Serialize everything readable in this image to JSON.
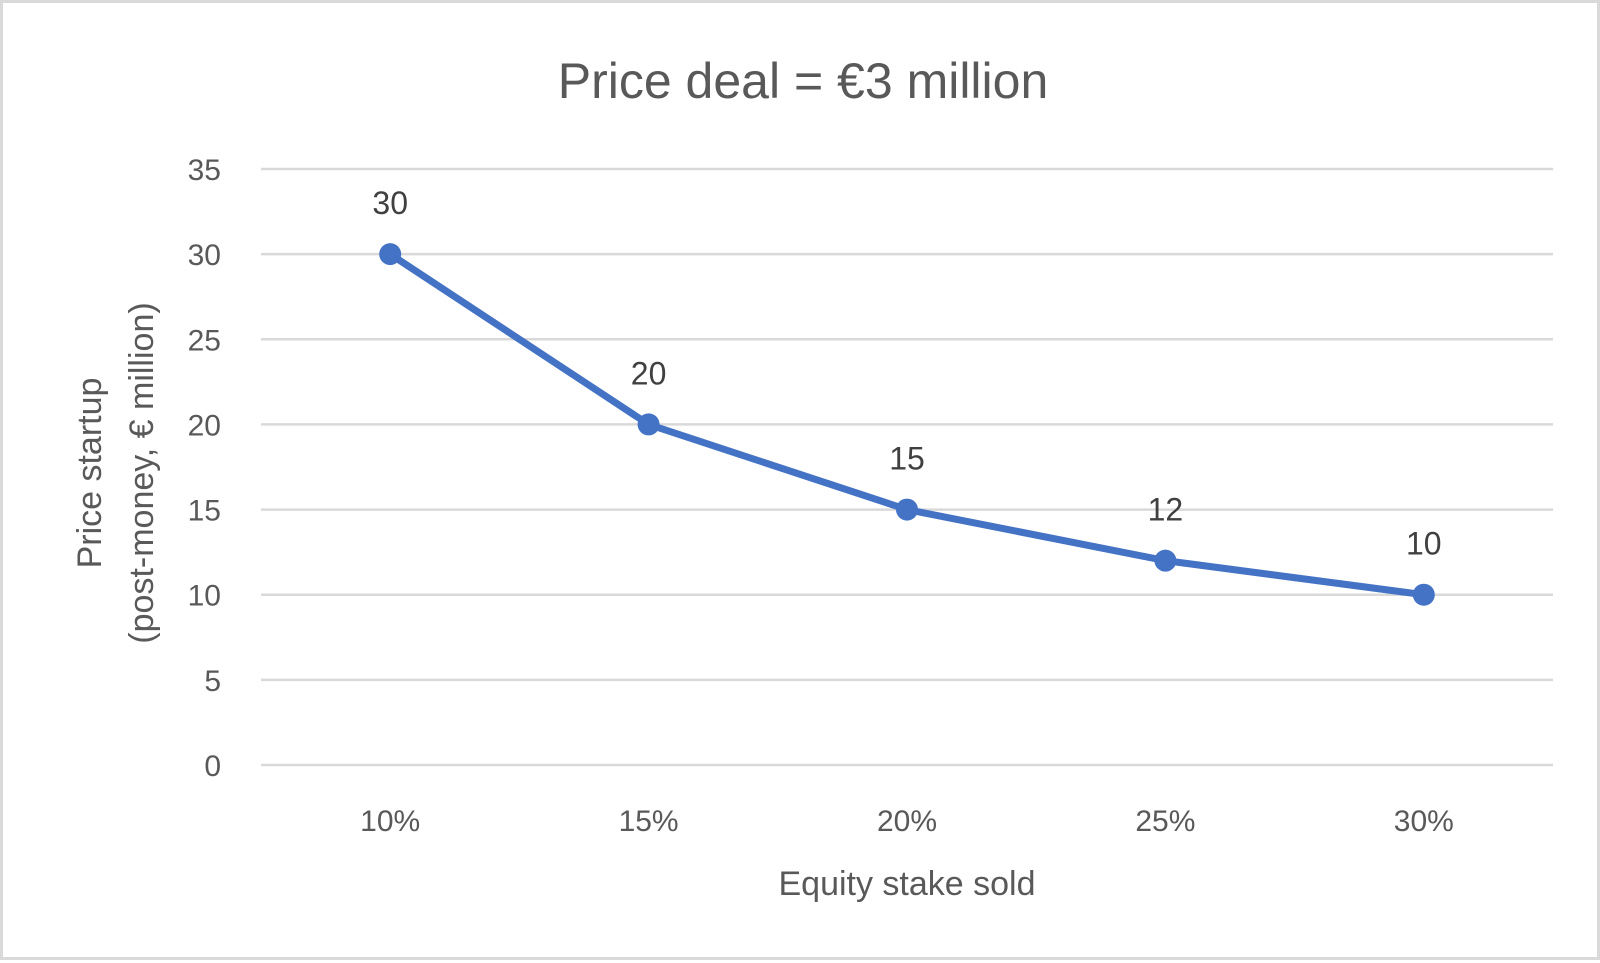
{
  "chart_data": {
    "type": "line",
    "title": "Price deal = €3 million",
    "xlabel": "Equity stake sold",
    "ylabel_lines": [
      "Price startup",
      "(post-money, € million)"
    ],
    "categories": [
      "10%",
      "15%",
      "20%",
      "25%",
      "30%"
    ],
    "series": [
      {
        "values": [
          30,
          20,
          15,
          12,
          10
        ],
        "data_labels": [
          "30",
          "20",
          "15",
          "12",
          "10"
        ],
        "color": "#4472c4"
      }
    ],
    "ylim": [
      0,
      35
    ],
    "y_ticks": [
      0,
      5,
      10,
      15,
      20,
      25,
      30,
      35
    ],
    "y_tick_labels": [
      "0",
      "5",
      "10",
      "15",
      "20",
      "25",
      "30",
      "35"
    ],
    "grid": true,
    "legend": "none"
  }
}
